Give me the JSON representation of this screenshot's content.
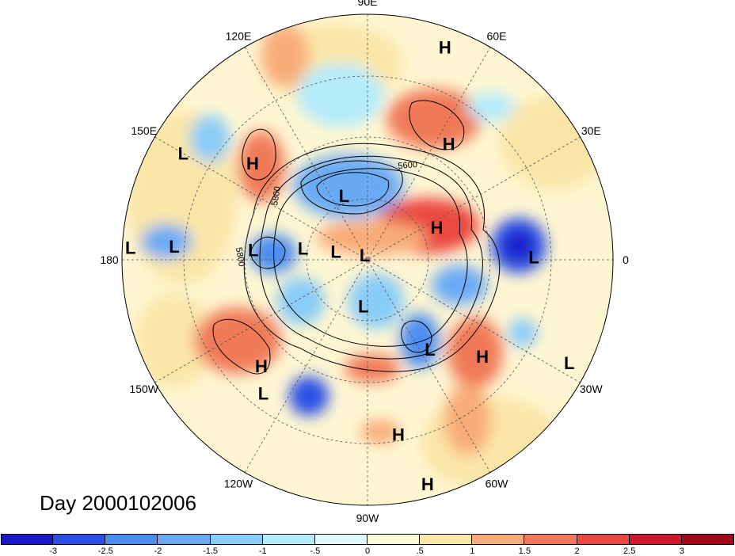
{
  "chart_data": {
    "type": "heatmap",
    "projection": "north-polar-stereographic",
    "title": "",
    "day_label": "Day 2000102006",
    "longitude_labels": [
      {
        "lon": 0,
        "text": "0"
      },
      {
        "lon": 30,
        "text": "30E"
      },
      {
        "lon": 60,
        "text": "60E"
      },
      {
        "lon": 90,
        "text": "90E"
      },
      {
        "lon": 120,
        "text": "120E"
      },
      {
        "lon": 150,
        "text": "150E"
      },
      {
        "lon": 180,
        "text": "180"
      },
      {
        "lon": -150,
        "text": "150W"
      },
      {
        "lon": -120,
        "text": "120W"
      },
      {
        "lon": -90,
        "text": "90W"
      },
      {
        "lon": -60,
        "text": "60W"
      },
      {
        "lon": -30,
        "text": "30W"
      }
    ],
    "contour_labels": [
      "5600",
      "5800",
      "5800"
    ],
    "pressure_centers": [
      {
        "label": "H",
        "lon": 70,
        "colat": 83
      },
      {
        "label": "H",
        "lon": 55,
        "colat": 52
      },
      {
        "label": "H",
        "lon": 140,
        "colat": 55
      },
      {
        "label": "H",
        "lon": 25,
        "colat": 28
      },
      {
        "label": "H",
        "lon": -135,
        "colat": 55
      },
      {
        "label": "H",
        "lon": -40,
        "colat": 55
      },
      {
        "label": "H",
        "lon": -80,
        "colat": 65
      },
      {
        "label": "H",
        "lon": -75,
        "colat": 85
      },
      {
        "label": "L",
        "lon": 150,
        "colat": 78
      },
      {
        "label": "L",
        "lon": 110,
        "colat": 25
      },
      {
        "label": "L",
        "lon": 175,
        "colat": 42
      },
      {
        "label": "L",
        "lon": 176,
        "colat": 71
      },
      {
        "label": "L",
        "lon": 177,
        "colat": 87
      },
      {
        "label": "L",
        "lon": 170,
        "colat": 24
      },
      {
        "label": "L",
        "lon": 165,
        "colat": 12
      },
      {
        "label": "L",
        "lon": 120,
        "colat": 2
      },
      {
        "label": "L",
        "lon": -95,
        "colat": 17
      },
      {
        "label": "L",
        "lon": -55,
        "colat": 40
      },
      {
        "label": "L",
        "lon": -128,
        "colat": 62
      },
      {
        "label": "L",
        "lon": 1,
        "colat": 61
      },
      {
        "label": "L",
        "lon": -27,
        "colat": 83
      }
    ],
    "colorbar": {
      "levels": [
        "-3",
        "-2.5",
        "-2",
        "-1.5",
        "-1",
        "-.5",
        "0",
        ".5",
        "1",
        "1.5",
        "2",
        "2.5",
        "3"
      ],
      "colors": [
        "#1c18c8",
        "#2a4fe6",
        "#4b8ef0",
        "#6aaaf4",
        "#88ccf8",
        "#b4ecfc",
        "#e0f8fc",
        "#fefcd8",
        "#fbe6a8",
        "#f8ab78",
        "#f07a58",
        "#ea4840",
        "#cc1828",
        "#a00a18"
      ]
    }
  }
}
